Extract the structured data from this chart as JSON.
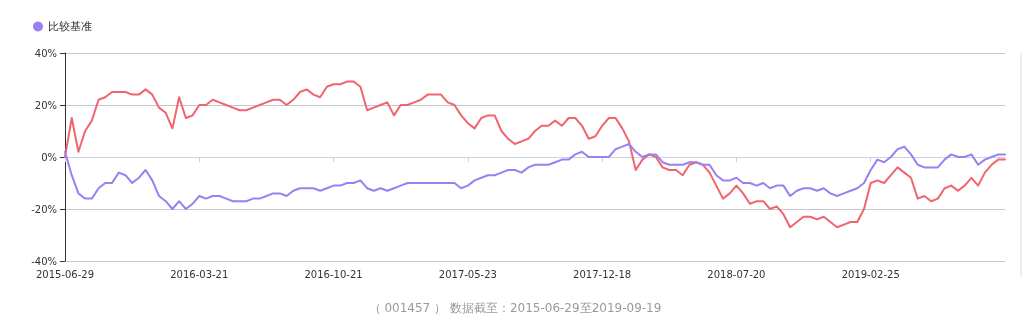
{
  "chart_data": {
    "type": "line",
    "categories": [
      "2015-06-29",
      null,
      null,
      null,
      null,
      null,
      null,
      null,
      null,
      null,
      null,
      null,
      null,
      null,
      null,
      null,
      null,
      null,
      null,
      null,
      "2016-03-21",
      null,
      null,
      null,
      null,
      null,
      null,
      null,
      null,
      null,
      null,
      null,
      null,
      null,
      null,
      null,
      null,
      null,
      null,
      null,
      "2016-10-21",
      null,
      null,
      null,
      null,
      null,
      null,
      null,
      null,
      null,
      null,
      null,
      null,
      null,
      null,
      null,
      null,
      null,
      null,
      null,
      "2017-05-23",
      null,
      null,
      null,
      null,
      null,
      null,
      null,
      null,
      null,
      null,
      null,
      null,
      null,
      null,
      null,
      null,
      null,
      null,
      null,
      "2017-12-18",
      null,
      null,
      null,
      null,
      null,
      null,
      null,
      null,
      null,
      null,
      null,
      null,
      null,
      null,
      null,
      null,
      null,
      null,
      null,
      "2018-07-20",
      null,
      null,
      null,
      null,
      null,
      null,
      null,
      null,
      null,
      null,
      null,
      null,
      null,
      null,
      null,
      null,
      null,
      null,
      null,
      "2019-02-25",
      null,
      null,
      null,
      null,
      null,
      null,
      null,
      null,
      null,
      null,
      null,
      null,
      null,
      null,
      null,
      null,
      null,
      null,
      null,
      null
    ],
    "series": [
      {
        "color": "#f0656e",
        "values": [
          0,
          15,
          2,
          10,
          14,
          22,
          23,
          25,
          25,
          25,
          24,
          24,
          26,
          24,
          19,
          17,
          11,
          23,
          15,
          16,
          20,
          20,
          22,
          21,
          20,
          19,
          18,
          18,
          19,
          20,
          21,
          22,
          22,
          20,
          22,
          25,
          26,
          24,
          23,
          27,
          28,
          28,
          29,
          29,
          27,
          18,
          19,
          20,
          21,
          16,
          20,
          20,
          21,
          22,
          24,
          24,
          24,
          21,
          20,
          16,
          13,
          11,
          15,
          16,
          16,
          10,
          7,
          5,
          6,
          7,
          10,
          12,
          12,
          14,
          12,
          15,
          15,
          12,
          7,
          8,
          12,
          15,
          15,
          11,
          6,
          -5,
          -1,
          1,
          0,
          -4,
          -5,
          -5,
          -7,
          -3,
          -2,
          -3,
          -6,
          -11,
          -16,
          -14,
          -11,
          -14,
          -18,
          -17,
          -17,
          -20,
          -19,
          -22,
          -27,
          -25,
          -23,
          -23,
          -24,
          -23,
          -25,
          -27,
          -26,
          -25,
          -25,
          -20,
          -10,
          -9,
          -10,
          -7,
          -4,
          -6,
          -8,
          -16,
          -15,
          -17,
          -16,
          -12,
          -11,
          -13,
          -11,
          -8,
          -11,
          -6,
          -3,
          -1,
          -1
        ]
      },
      {
        "name": "比较基准",
        "color": "#9b80f2",
        "values": [
          2,
          -7,
          -14,
          -16,
          -16,
          -12,
          -10,
          -10,
          -6,
          -7,
          -10,
          -8,
          -5,
          -9,
          -15,
          -17,
          -20,
          -17,
          -20,
          -18,
          -15,
          -16,
          -15,
          -15,
          -16,
          -17,
          -17,
          -17,
          -16,
          -16,
          -15,
          -14,
          -14,
          -15,
          -13,
          -12,
          -12,
          -12,
          -13,
          -12,
          -11,
          -11,
          -10,
          -10,
          -9,
          -12,
          -13,
          -12,
          -13,
          -12,
          -11,
          -10,
          -10,
          -10,
          -10,
          -10,
          -10,
          -10,
          -10,
          -12,
          -11,
          -9,
          -8,
          -7,
          -7,
          -6,
          -5,
          -5,
          -6,
          -4,
          -3,
          -3,
          -3,
          -2,
          -1,
          -1,
          1,
          2,
          0,
          0,
          0,
          0,
          3,
          4,
          5,
          2,
          0,
          1,
          1,
          -2,
          -3,
          -3,
          -3,
          -2,
          -2,
          -3,
          -3,
          -7,
          -9,
          -9,
          -8,
          -10,
          -10,
          -11,
          -10,
          -12,
          -11,
          -11,
          -15,
          -13,
          -12,
          -12,
          -13,
          -12,
          -14,
          -15,
          -14,
          -13,
          -12,
          -10,
          -5,
          -1,
          -2,
          0,
          3,
          4,
          1,
          -3,
          -4,
          -4,
          -4,
          -1,
          1,
          0,
          0,
          1,
          -3,
          -1,
          0,
          1,
          1
        ]
      }
    ],
    "ylim": [
      -40,
      40
    ],
    "yticks": [
      {
        "value": -40,
        "label": "-40%"
      },
      {
        "value": -20,
        "label": "-20%"
      },
      {
        "value": 0,
        "label": "0%"
      },
      {
        "value": 20,
        "label": "20%"
      },
      {
        "value": 40,
        "label": "40%"
      }
    ],
    "grid": "y",
    "legend": "top left",
    "marker": "none",
    "line_style": "solid",
    "annotations": [
      "（ 001457 ） 数据截至：2015-06-29至2019-09-19"
    ]
  }
}
